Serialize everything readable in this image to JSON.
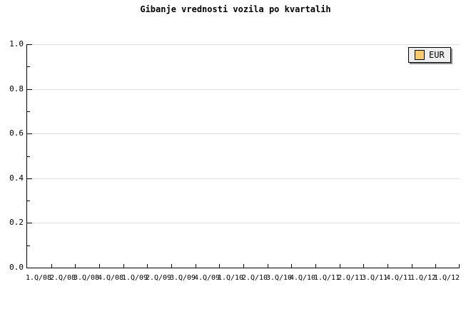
{
  "title": "Gibanje vrednosti vozila po kvartalih",
  "y_axis": {
    "tick_labels": [
      "1.0",
      "0.8",
      "0.6",
      "0.4",
      "0.2",
      "0.0"
    ]
  },
  "x_axis": {
    "tick_labels": [
      "1.Q/08",
      "2.Q/08",
      "3.Q/08",
      "4.Q/08",
      "1.Q/09",
      "2.Q/09",
      "3.Q/09",
      "4.Q/09",
      "1.Q/10",
      "2.Q/10",
      "3.Q/10",
      "4.Q/10",
      "1.Q/11",
      "2.Q/11",
      "3.Q/11",
      "4.Q/11",
      "1.Q/12",
      "1.Q/12"
    ]
  },
  "legend": {
    "items": [
      {
        "label": "EUR",
        "swatch_color": "#f9c96f"
      }
    ]
  },
  "colors": {
    "background": "#ffffff",
    "axis": "#000000",
    "grid": "#dedede",
    "legend_background": "#eeeeee",
    "legend_border": "#000000",
    "legend_shadow": "#8e8e8e",
    "series_eur": "#f9c96f",
    "text": "#000000"
  },
  "chart_data": {
    "type": "line",
    "title": "Gibanje vrednosti vozila po kvartalih",
    "categories": [
      "1.Q/08",
      "2.Q/08",
      "3.Q/08",
      "4.Q/08",
      "1.Q/09",
      "2.Q/09",
      "3.Q/09",
      "4.Q/09",
      "1.Q/10",
      "2.Q/10",
      "3.Q/10",
      "4.Q/10",
      "1.Q/11",
      "2.Q/11",
      "3.Q/11",
      "4.Q/11",
      "1.Q/12",
      "1.Q/12"
    ],
    "series": [
      {
        "name": "EUR",
        "color": "#f9c96f",
        "values": []
      }
    ],
    "xlabel": "",
    "ylabel": "",
    "ylim": [
      0.0,
      1.0
    ],
    "y_ticks": [
      0.0,
      0.2,
      0.4,
      0.6,
      0.8,
      1.0
    ],
    "y_minor_tick_step": 0.1,
    "grid": "horizontal-major",
    "legend_position": "top-right"
  }
}
